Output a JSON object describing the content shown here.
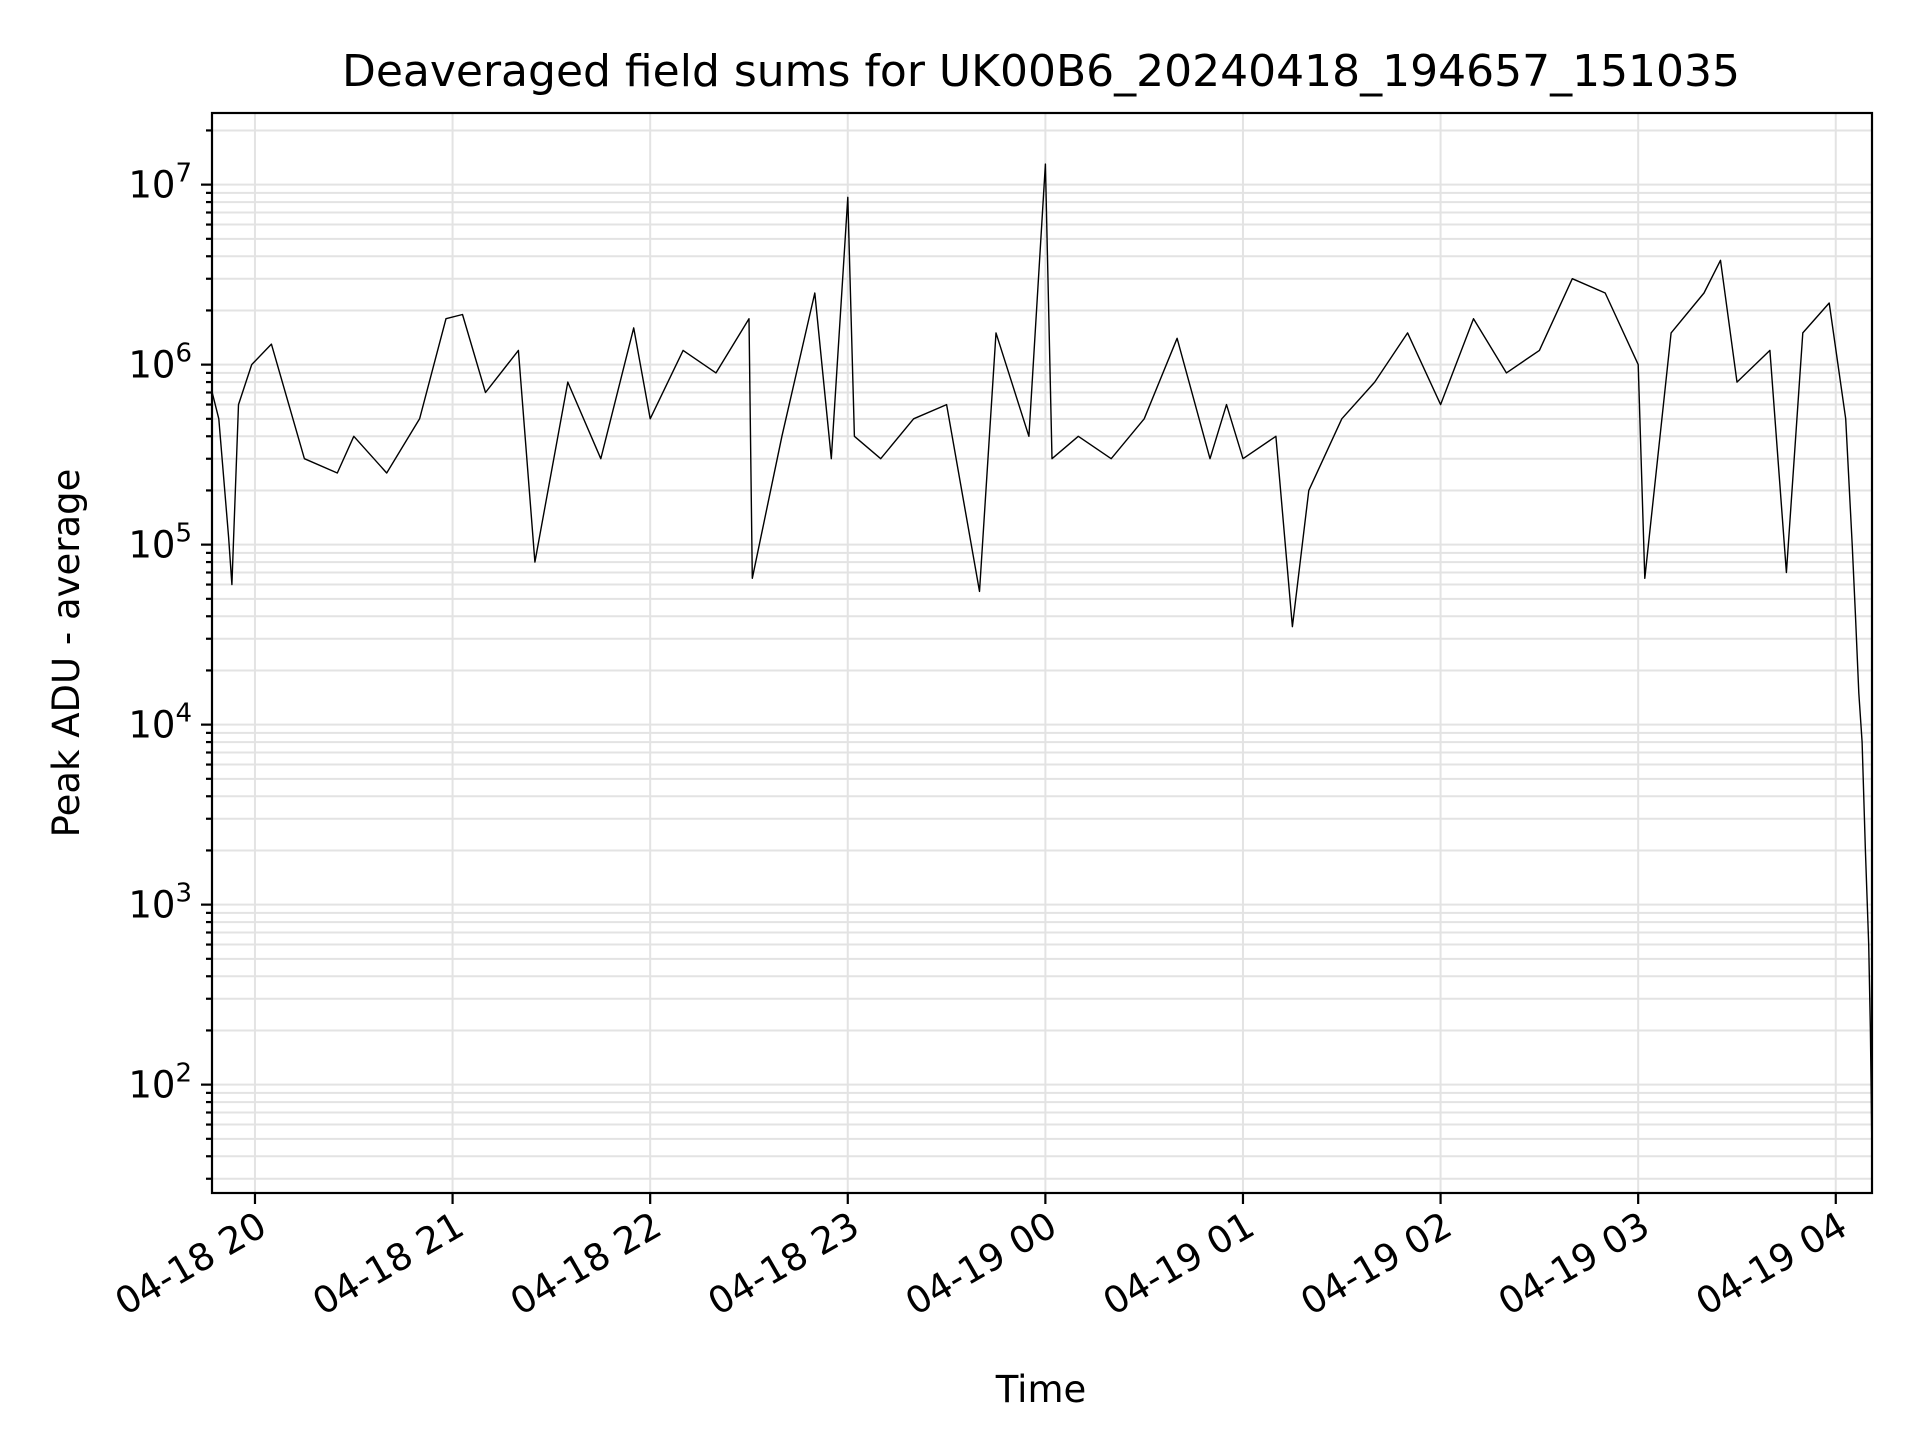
{
  "chart_data": {
    "type": "line",
    "title": "Deaveraged field sums for UK00B6_20240418_194657_151035",
    "xlabel": "Time",
    "ylabel": "Peak ADU - average",
    "yscale": "log",
    "ylim": [
      25,
      25000000
    ],
    "xlim": [
      "2024-04-18T19:46:57",
      "2024-04-19T04:11:00"
    ],
    "grid": true,
    "y_ticks": [
      {
        "base": "10",
        "exp": "2",
        "value": 100
      },
      {
        "base": "10",
        "exp": "3",
        "value": 1000
      },
      {
        "base": "10",
        "exp": "4",
        "value": 10000
      },
      {
        "base": "10",
        "exp": "5",
        "value": 100000
      },
      {
        "base": "10",
        "exp": "6",
        "value": 1000000
      },
      {
        "base": "10",
        "exp": "7",
        "value": 10000000
      }
    ],
    "x_ticks": [
      {
        "label": "04-18 20",
        "time": "2024-04-18T20:00:00"
      },
      {
        "label": "04-18 21",
        "time": "2024-04-18T21:00:00"
      },
      {
        "label": "04-18 22",
        "time": "2024-04-18T22:00:00"
      },
      {
        "label": "04-18 23",
        "time": "2024-04-18T23:00:00"
      },
      {
        "label": "04-19 00",
        "time": "2024-04-19T00:00:00"
      },
      {
        "label": "04-19 01",
        "time": "2024-04-19T01:00:00"
      },
      {
        "label": "04-19 02",
        "time": "2024-04-19T02:00:00"
      },
      {
        "label": "04-19 03",
        "time": "2024-04-19T03:00:00"
      },
      {
        "label": "04-19 04",
        "time": "2024-04-19T04:00:00"
      }
    ],
    "series": [
      {
        "color": "#000000",
        "points": [
          [
            "2024-04-18T19:47:00",
            700000
          ],
          [
            "2024-04-18T19:49:00",
            500000
          ],
          [
            "2024-04-18T19:52:00",
            110000
          ],
          [
            "2024-04-18T19:53:00",
            60000
          ],
          [
            "2024-04-18T19:55:00",
            600000
          ],
          [
            "2024-04-18T19:59:00",
            1000000
          ],
          [
            "2024-04-18T20:05:00",
            1300000
          ],
          [
            "2024-04-18T20:15:00",
            300000
          ],
          [
            "2024-04-18T20:25:00",
            250000
          ],
          [
            "2024-04-18T20:30:00",
            400000
          ],
          [
            "2024-04-18T20:40:00",
            250000
          ],
          [
            "2024-04-18T20:50:00",
            500000
          ],
          [
            "2024-04-18T20:58:00",
            1800000
          ],
          [
            "2024-04-18T21:03:00",
            1900000
          ],
          [
            "2024-04-18T21:10:00",
            700000
          ],
          [
            "2024-04-18T21:20:00",
            1200000
          ],
          [
            "2024-04-18T21:25:00",
            80000
          ],
          [
            "2024-04-18T21:35:00",
            800000
          ],
          [
            "2024-04-18T21:45:00",
            300000
          ],
          [
            "2024-04-18T21:55:00",
            1600000
          ],
          [
            "2024-04-18T22:00:00",
            500000
          ],
          [
            "2024-04-18T22:10:00",
            1200000
          ],
          [
            "2024-04-18T22:20:00",
            900000
          ],
          [
            "2024-04-18T22:30:00",
            1800000
          ],
          [
            "2024-04-18T22:31:00",
            65000
          ],
          [
            "2024-04-18T22:40:00",
            400000
          ],
          [
            "2024-04-18T22:50:00",
            2500000
          ],
          [
            "2024-04-18T22:55:00",
            300000
          ],
          [
            "2024-04-18T23:00:00",
            8500000
          ],
          [
            "2024-04-18T23:02:00",
            400000
          ],
          [
            "2024-04-18T23:10:00",
            300000
          ],
          [
            "2024-04-18T23:20:00",
            500000
          ],
          [
            "2024-04-18T23:30:00",
            600000
          ],
          [
            "2024-04-18T23:40:00",
            55000
          ],
          [
            "2024-04-18T23:45:00",
            1500000
          ],
          [
            "2024-04-18T23:55:00",
            400000
          ],
          [
            "2024-04-19T00:00:00",
            13000000
          ],
          [
            "2024-04-19T00:02:00",
            300000
          ],
          [
            "2024-04-19T00:10:00",
            400000
          ],
          [
            "2024-04-19T00:20:00",
            300000
          ],
          [
            "2024-04-19T00:30:00",
            500000
          ],
          [
            "2024-04-19T00:40:00",
            1400000
          ],
          [
            "2024-04-19T00:50:00",
            300000
          ],
          [
            "2024-04-19T00:55:00",
            600000
          ],
          [
            "2024-04-19T01:00:00",
            300000
          ],
          [
            "2024-04-19T01:10:00",
            400000
          ],
          [
            "2024-04-19T01:15:00",
            35000
          ],
          [
            "2024-04-19T01:20:00",
            200000
          ],
          [
            "2024-04-19T01:30:00",
            500000
          ],
          [
            "2024-04-19T01:40:00",
            800000
          ],
          [
            "2024-04-19T01:50:00",
            1500000
          ],
          [
            "2024-04-19T02:00:00",
            600000
          ],
          [
            "2024-04-19T02:10:00",
            1800000
          ],
          [
            "2024-04-19T02:20:00",
            900000
          ],
          [
            "2024-04-19T02:30:00",
            1200000
          ],
          [
            "2024-04-19T02:40:00",
            3000000
          ],
          [
            "2024-04-19T02:50:00",
            2500000
          ],
          [
            "2024-04-19T03:00:00",
            1000000
          ],
          [
            "2024-04-19T03:02:00",
            65000
          ],
          [
            "2024-04-19T03:10:00",
            1500000
          ],
          [
            "2024-04-19T03:20:00",
            2500000
          ],
          [
            "2024-04-19T03:25:00",
            3800000
          ],
          [
            "2024-04-19T03:30:00",
            800000
          ],
          [
            "2024-04-19T03:40:00",
            1200000
          ],
          [
            "2024-04-19T03:45:00",
            70000
          ],
          [
            "2024-04-19T03:50:00",
            1500000
          ],
          [
            "2024-04-19T03:58:00",
            2200000
          ],
          [
            "2024-04-19T04:03:00",
            500000
          ],
          [
            "2024-04-19T04:05:00",
            100000
          ],
          [
            "2024-04-19T04:06:00",
            40000
          ],
          [
            "2024-04-19T04:07:00",
            15000
          ],
          [
            "2024-04-19T04:08:00",
            8000
          ],
          [
            "2024-04-19T04:09:00",
            2000
          ],
          [
            "2024-04-19T04:10:00",
            600
          ],
          [
            "2024-04-19T04:10:30",
            200
          ],
          [
            "2024-04-19T04:11:00",
            40
          ]
        ]
      }
    ]
  }
}
